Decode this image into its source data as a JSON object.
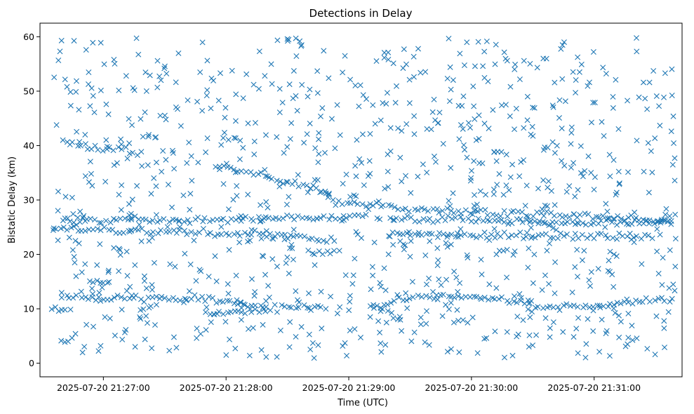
{
  "chart_data": {
    "type": "scatter",
    "title": "Detections in Delay",
    "xlabel": "Time (UTC)",
    "ylabel": "Bistatic Delay (km)",
    "x_ticks": [
      "2025-07-20 21:27:00",
      "2025-07-20 21:28:00",
      "2025-07-20 21:29:00",
      "2025-07-20 21:30:00",
      "2025-07-20 21:31:00"
    ],
    "y_ticks": [
      "0",
      "10",
      "20",
      "30",
      "40",
      "50",
      "60"
    ],
    "x_range": [
      "2025-07-20 21:26:29",
      "2025-07-20 21:31:43"
    ],
    "ylim": [
      -2.5,
      62.5
    ],
    "marker": "x",
    "grid": false,
    "legend": "none",
    "colors": {
      "marker": "#1f77b4"
    },
    "tracks": [
      {
        "x": [
          "2025-07-20 21:26:40",
          "2025-07-20 21:27:05",
          "2025-07-20 21:27:20"
        ],
        "y": [
          40.5,
          39.4,
          38.5
        ]
      },
      {
        "x": [
          "2025-07-20 21:27:55",
          "2025-07-20 21:28:30",
          "2025-07-20 21:28:50"
        ],
        "y": [
          36.5,
          33.3,
          31.6
        ]
      },
      {
        "x": [
          "2025-07-20 21:28:50",
          "2025-07-20 21:29:30",
          "2025-07-20 21:30:10",
          "2025-07-20 21:30:50",
          "2025-07-20 21:31:40"
        ],
        "y": [
          30.0,
          28.3,
          27.6,
          27.2,
          26.0
        ]
      },
      {
        "x": [
          "2025-07-20 21:26:35",
          "2025-07-20 21:27:10",
          "2025-07-20 21:27:45",
          "2025-07-20 21:28:20",
          "2025-07-20 21:28:55"
        ],
        "y": [
          24.7,
          24.3,
          24.0,
          23.7,
          22.5
        ]
      },
      {
        "x": [
          "2025-07-20 21:29:20",
          "2025-07-20 21:29:50",
          "2025-07-20 21:30:20",
          "2025-07-20 21:31:00",
          "2025-07-20 21:31:30"
        ],
        "y": [
          23.7,
          23.6,
          23.5,
          23.4,
          23.3
        ]
      },
      {
        "x": [
          "2025-07-20 21:26:40",
          "2025-07-20 21:27:10",
          "2025-07-20 21:27:50",
          "2025-07-20 21:28:30",
          "2025-07-20 21:29:10"
        ],
        "y": [
          26.0,
          26.2,
          26.3,
          26.5,
          27.0
        ]
      },
      {
        "x": [
          "2025-07-20 21:29:20",
          "2025-07-20 21:30:00",
          "2025-07-20 21:30:40",
          "2025-07-20 21:31:40"
        ],
        "y": [
          26.5,
          26.3,
          26.0,
          25.8
        ]
      },
      {
        "x": [
          "2025-07-20 21:26:40",
          "2025-07-20 21:27:20",
          "2025-07-20 21:27:50",
          "2025-07-20 21:28:20",
          "2025-07-20 21:28:50"
        ],
        "y": [
          12.0,
          12.0,
          12.0,
          10.0,
          10.2
        ]
      },
      {
        "x": [
          "2025-07-20 21:29:10",
          "2025-07-20 21:29:30",
          "2025-07-20 21:29:45",
          "2025-07-20 21:30:10",
          "2025-07-20 21:30:40"
        ],
        "y": [
          10.0,
          12.0,
          12.2,
          12.0,
          10.0
        ]
      },
      {
        "x": [
          "2025-07-20 21:30:40",
          "2025-07-20 21:31:10",
          "2025-07-20 21:31:40"
        ],
        "y": [
          10.0,
          11.0,
          12.0
        ]
      },
      {
        "x": [
          "2025-07-20 21:27:50",
          "2025-07-20 21:28:20"
        ],
        "y": [
          9.3,
          9.5
        ]
      },
      {
        "x": [
          "2025-07-20 21:28:40",
          "2025-07-20 21:28:55"
        ],
        "y": [
          20.5,
          20.3
        ]
      },
      {
        "x": [
          "2025-07-20 21:26:55",
          "2025-07-20 21:27:05"
        ],
        "y": [
          14.8,
          14.6
        ]
      },
      {
        "x": [
          "2025-07-20 21:26:35",
          "2025-07-20 21:26:45"
        ],
        "y": [
          9.8,
          9.6
        ]
      }
    ],
    "noise": {
      "x_range": [
        "2025-07-20 21:26:35",
        "2025-07-20 21:31:40"
      ],
      "y_range": [
        0.8,
        59.8
      ]
    }
  }
}
